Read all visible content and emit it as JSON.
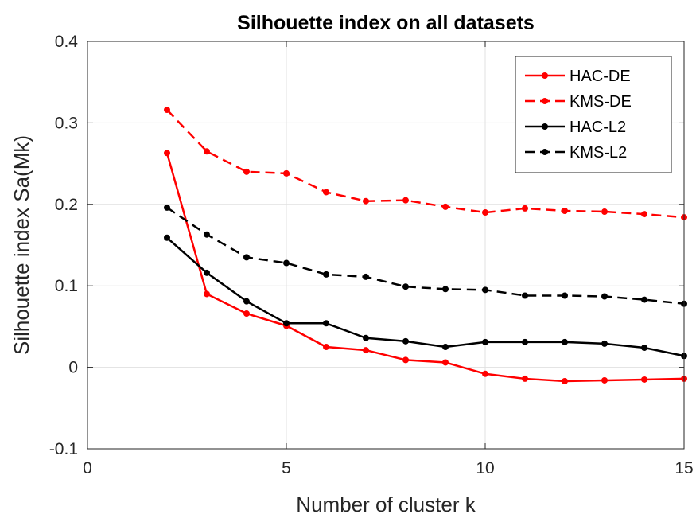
{
  "chart_data": {
    "type": "line",
    "title": "Silhouette index on all datasets",
    "xlabel": "Number of cluster k",
    "ylabel": "Silhouette index Sa(Mk)",
    "xlim": [
      0,
      15
    ],
    "ylim": [
      -0.1,
      0.4
    ],
    "xticks": [
      0,
      5,
      10,
      15
    ],
    "xtick_labels": [
      "0",
      "5",
      "10",
      "15"
    ],
    "yticks": [
      -0.1,
      0,
      0.1,
      0.2,
      0.3,
      0.4
    ],
    "ytick_labels": [
      "-0.1",
      "0",
      "0.1",
      "0.2",
      "0.3",
      "0.4"
    ],
    "grid": true,
    "legend_position": "top-right",
    "x": [
      2,
      3,
      4,
      5,
      6,
      7,
      8,
      9,
      10,
      11,
      12,
      13,
      14,
      15
    ],
    "series": [
      {
        "name": "HAC-DE",
        "color": "#ff0000",
        "dash": "solid",
        "values": [
          0.263,
          0.09,
          0.066,
          0.051,
          0.025,
          0.021,
          0.009,
          0.006,
          -0.008,
          -0.014,
          -0.017,
          -0.016,
          -0.015,
          -0.014
        ]
      },
      {
        "name": "KMS-DE",
        "color": "#ff0000",
        "dash": "dashed",
        "values": [
          0.316,
          0.265,
          0.24,
          0.238,
          0.215,
          0.204,
          0.205,
          0.197,
          0.19,
          0.195,
          0.192,
          0.191,
          0.188,
          0.184
        ]
      },
      {
        "name": "HAC-L2",
        "color": "#000000",
        "dash": "solid",
        "values": [
          0.159,
          0.116,
          0.081,
          0.054,
          0.054,
          0.036,
          0.032,
          0.025,
          0.031,
          0.031,
          0.031,
          0.029,
          0.024,
          0.014
        ]
      },
      {
        "name": "KMS-L2",
        "color": "#000000",
        "dash": "dashed",
        "values": [
          0.196,
          0.163,
          0.135,
          0.128,
          0.114,
          0.111,
          0.099,
          0.096,
          0.095,
          0.088,
          0.088,
          0.087,
          0.083,
          0.078
        ]
      }
    ]
  }
}
